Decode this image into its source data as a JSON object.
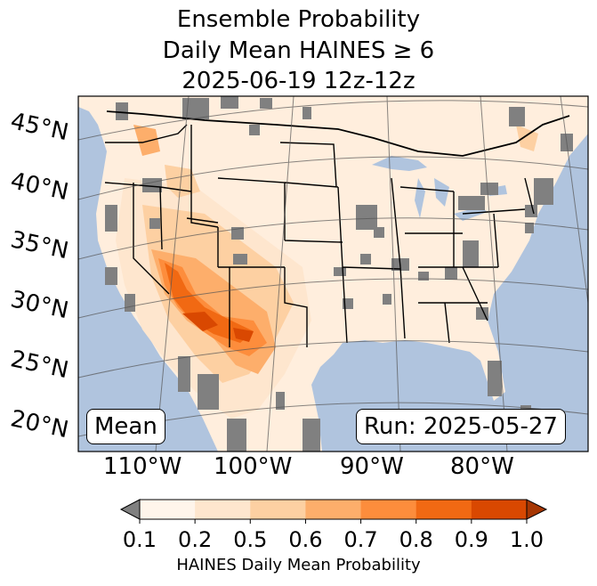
{
  "title": {
    "line1": "Ensemble Probability",
    "line2": "Daily Mean HAINES ≥ 6",
    "line3": "2025-06-19 12z-12z"
  },
  "map": {
    "mode_label": "Mean",
    "run_label": "Run: 2025-05-27",
    "lat_labels": [
      "45°N",
      "40°N",
      "35°N",
      "30°N",
      "25°N",
      "20°N"
    ],
    "lon_labels": [
      "110°W",
      "100°W",
      "90°W",
      "80°W"
    ],
    "colors": {
      "ocean": "#b0c4de",
      "land_low": "#ffeedd",
      "no_data": "#808080",
      "border": "#000000",
      "grid": "#555555"
    }
  },
  "colorbar": {
    "ticks": [
      "0.1",
      "0.2",
      "0.5",
      "0.6",
      "0.7",
      "0.8",
      "0.9",
      "1.0"
    ],
    "colors": [
      "#fff5eb",
      "#fee6ce",
      "#fdd0a2",
      "#fdae6b",
      "#fd8d3c",
      "#f16913",
      "#d94801",
      "#a63603"
    ],
    "under_color": "#808080",
    "label": "HAINES Daily Mean Probability"
  }
}
